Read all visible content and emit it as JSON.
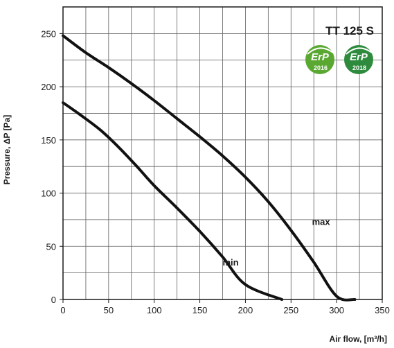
{
  "chart_data": {
    "type": "line",
    "title": "TT 125 S",
    "xlabel": "Air flow, [m³/h]",
    "ylabel": "Pressure, ΔP [Pa]",
    "xlim": [
      0,
      350
    ],
    "ylim": [
      0,
      275
    ],
    "x_ticks": [
      0,
      50,
      100,
      150,
      200,
      250,
      300,
      350
    ],
    "y_ticks": [
      0,
      50,
      100,
      150,
      200,
      250
    ],
    "grid": true,
    "series": [
      {
        "name": "max",
        "points": [
          [
            0,
            248
          ],
          [
            25,
            232
          ],
          [
            50,
            218
          ],
          [
            75,
            203
          ],
          [
            100,
            187
          ],
          [
            125,
            170
          ],
          [
            150,
            153
          ],
          [
            175,
            135
          ],
          [
            200,
            115
          ],
          [
            225,
            92
          ],
          [
            250,
            65
          ],
          [
            275,
            35
          ],
          [
            300,
            3
          ],
          [
            320,
            0
          ]
        ]
      },
      {
        "name": "min",
        "points": [
          [
            0,
            185
          ],
          [
            15,
            176
          ],
          [
            40,
            160
          ],
          [
            60,
            144
          ],
          [
            80,
            126
          ],
          [
            100,
            107
          ],
          [
            125,
            86
          ],
          [
            150,
            64
          ],
          [
            175,
            40
          ],
          [
            200,
            14
          ],
          [
            240,
            0
          ]
        ]
      }
    ]
  },
  "badges": [
    {
      "label": "ErP",
      "year": "2016",
      "color": "#5aa832"
    },
    {
      "label": "ErP",
      "year": "2018",
      "color": "#2e8b3e"
    }
  ],
  "colors": {
    "curve": "#111111",
    "grid": "#5f5f5f",
    "frame": "#1a1a1a"
  }
}
